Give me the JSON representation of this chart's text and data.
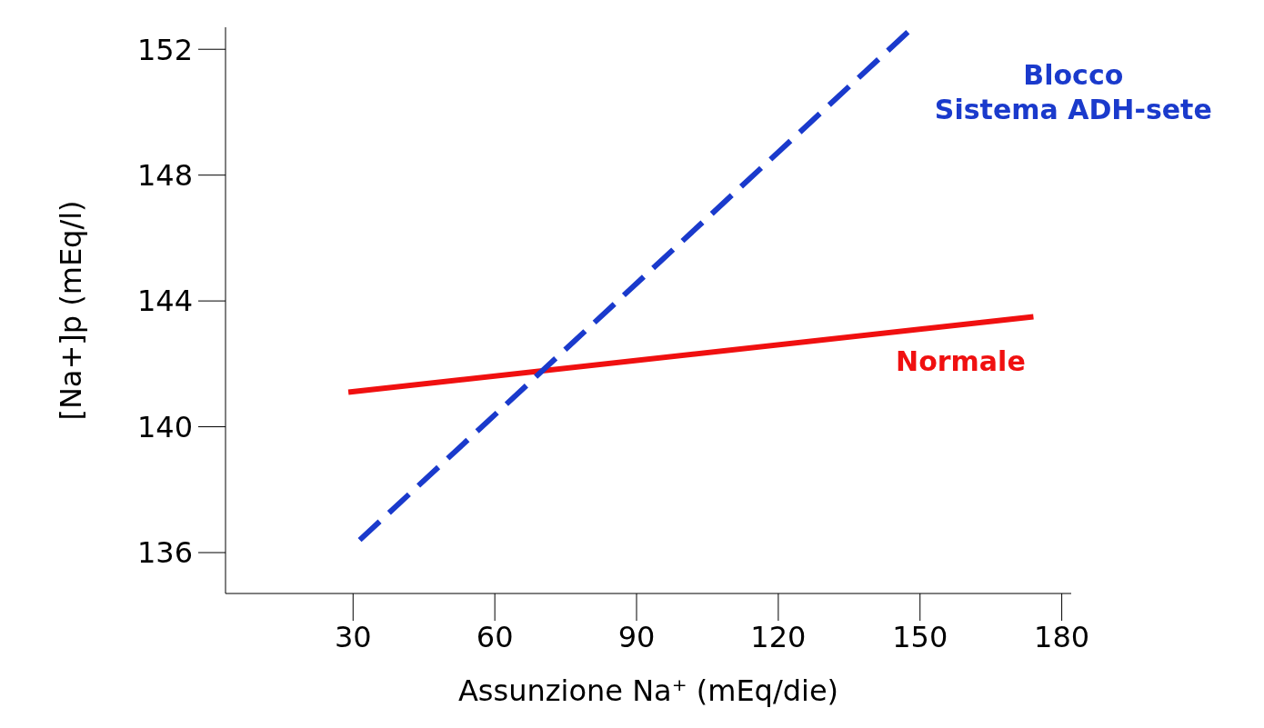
{
  "chart_data": {
    "type": "line",
    "xlabel": "Assunzione Na⁺ (mEq/die)",
    "ylabel": "[Na+]p (mEq/l)",
    "xlim": [
      3,
      182
    ],
    "xticks": [
      30,
      60,
      90,
      120,
      150,
      180
    ],
    "ylim": [
      134.7,
      152.7
    ],
    "yticks": [
      136,
      140,
      144,
      148,
      152
    ],
    "series": [
      {
        "name": "Normale",
        "color": "#f01010",
        "x": [
          29,
          174
        ],
        "values": [
          141.1,
          143.5
        ],
        "line_style": "solid"
      },
      {
        "name": "Blocco\nSistema ADH-sete",
        "color": "#1a3acc",
        "x": [
          31.4,
          147.8
        ],
        "values": [
          136.4,
          152.6
        ],
        "line_style": "dashed"
      }
    ],
    "grid": false,
    "legend": false,
    "marker": "none"
  }
}
